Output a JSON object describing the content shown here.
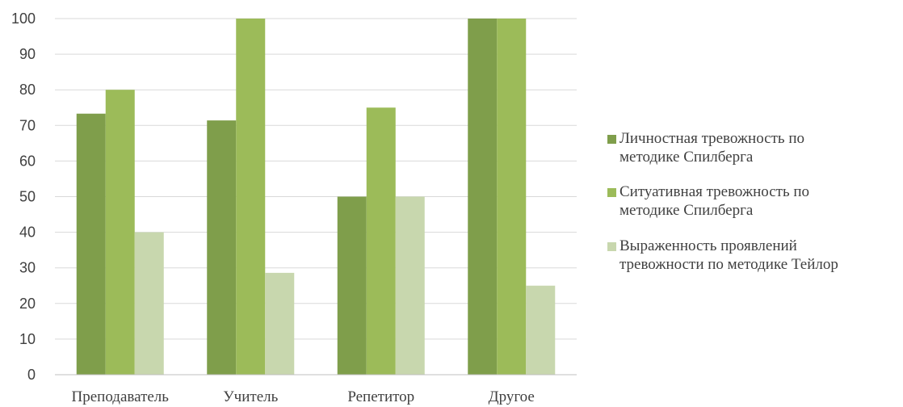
{
  "chart_data": {
    "type": "bar",
    "title": "",
    "xlabel": "",
    "ylabel": "",
    "ylim": [
      0,
      100
    ],
    "yticks": [
      0,
      10,
      20,
      30,
      40,
      50,
      60,
      70,
      80,
      90,
      100
    ],
    "grid": true,
    "legend_position": "right",
    "categories": [
      "Преподаватель",
      "Учитель",
      "Репетитор",
      "Другое"
    ],
    "series": [
      {
        "name": "Личностная тревожность по методике Спилберга",
        "legend_lines": [
          "Личностная тревожность по",
          "методике Спилберга"
        ],
        "color": "#7f9e4b",
        "values": [
          73.3,
          71.4,
          50,
          100
        ]
      },
      {
        "name": "Ситуативная тревожность по методике Спилберга",
        "legend_lines": [
          "Ситуативная тревожность по",
          "методике Спилберга"
        ],
        "color": "#9cbb59",
        "values": [
          80,
          100,
          75,
          100
        ]
      },
      {
        "name": "Выраженность проявлений тревожности по методике Тейлор",
        "legend_lines": [
          "Выраженность проявлений",
          "тревожности по методике Тейлор"
        ],
        "color": "#c8d7ae",
        "values": [
          40,
          28.6,
          50,
          25
        ]
      }
    ]
  }
}
